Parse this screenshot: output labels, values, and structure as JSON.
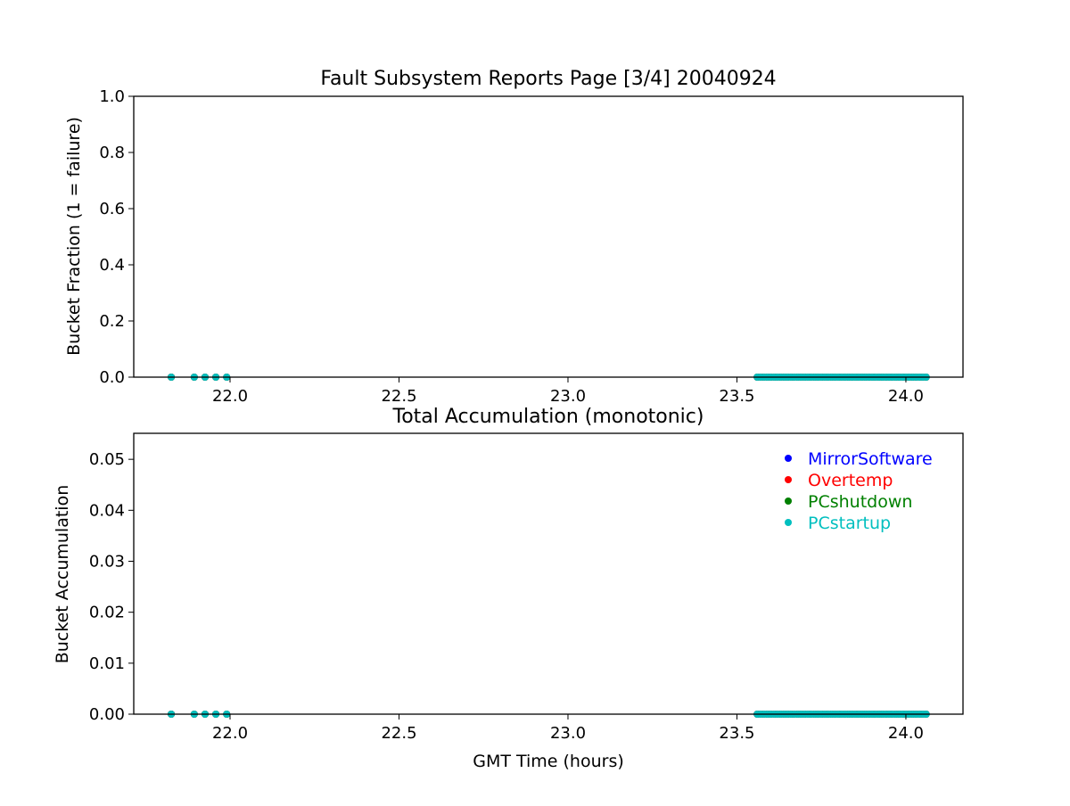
{
  "chart_data": [
    {
      "type": "scatter",
      "title": "Fault Subsystem Reports Page [3/4] 20040924",
      "xlabel": "",
      "ylabel": "Bucket Fraction (1 = failure)",
      "xlim": [
        21.715,
        24.169
      ],
      "ylim": [
        0,
        1
      ],
      "xticks": [
        "22.0",
        "22.5",
        "23.0",
        "23.5",
        "24.0"
      ],
      "yticks": [
        "0.0",
        "0.2",
        "0.4",
        "0.6",
        "0.8",
        "1.0"
      ],
      "grid": false,
      "x": [
        21.826,
        21.894,
        21.926,
        21.958,
        21.99,
        23.56,
        23.57,
        23.58,
        23.59,
        23.6,
        23.61,
        23.62,
        23.63,
        23.64,
        23.65,
        23.66,
        23.67,
        23.68,
        23.69,
        23.7,
        23.71,
        23.72,
        23.73,
        23.74,
        23.75,
        23.76,
        23.77,
        23.78,
        23.79,
        23.8,
        23.81,
        23.82,
        23.83,
        23.84,
        23.85,
        23.86,
        23.87,
        23.88,
        23.89,
        23.9,
        23.91,
        23.92,
        23.93,
        23.94,
        23.95,
        23.96,
        23.97,
        23.98,
        23.99,
        24.0,
        24.01,
        24.02,
        24.03,
        24.04,
        24.05,
        24.06
      ],
      "series": [
        {
          "name": "MirrorSoftware",
          "color": "#0000ff",
          "y_constant": 0
        },
        {
          "name": "Overtemp",
          "color": "#ff0000",
          "y_constant": 0
        },
        {
          "name": "PCshutdown",
          "color": "#008000",
          "y_constant": 0
        },
        {
          "name": "PCstartup",
          "color": "#00bfbf",
          "y_constant": 0
        }
      ]
    },
    {
      "type": "scatter",
      "title": "Total Accumulation (monotonic)",
      "xlabel": "GMT Time (hours)",
      "ylabel": "Bucket Accumulation",
      "xlim": [
        21.715,
        24.169
      ],
      "ylim": [
        0,
        0.0551
      ],
      "xticks": [
        "22.0",
        "22.5",
        "23.0",
        "23.5",
        "24.0"
      ],
      "yticks": [
        "0.00",
        "0.01",
        "0.02",
        "0.03",
        "0.04",
        "0.05"
      ],
      "grid": false,
      "legend": "top-right",
      "x": [
        21.826,
        21.894,
        21.926,
        21.958,
        21.99,
        23.56,
        23.57,
        23.58,
        23.59,
        23.6,
        23.61,
        23.62,
        23.63,
        23.64,
        23.65,
        23.66,
        23.67,
        23.68,
        23.69,
        23.7,
        23.71,
        23.72,
        23.73,
        23.74,
        23.75,
        23.76,
        23.77,
        23.78,
        23.79,
        23.8,
        23.81,
        23.82,
        23.83,
        23.84,
        23.85,
        23.86,
        23.87,
        23.88,
        23.89,
        23.9,
        23.91,
        23.92,
        23.93,
        23.94,
        23.95,
        23.96,
        23.97,
        23.98,
        23.99,
        24.0,
        24.01,
        24.02,
        24.03,
        24.04,
        24.05,
        24.06
      ],
      "series": [
        {
          "name": "MirrorSoftware",
          "color": "#0000ff",
          "y_constant": 0
        },
        {
          "name": "Overtemp",
          "color": "#ff0000",
          "y_constant": 0
        },
        {
          "name": "PCshutdown",
          "color": "#008000",
          "y_constant": 0
        },
        {
          "name": "PCstartup",
          "color": "#00bfbf",
          "y_constant": 0
        }
      ]
    }
  ]
}
